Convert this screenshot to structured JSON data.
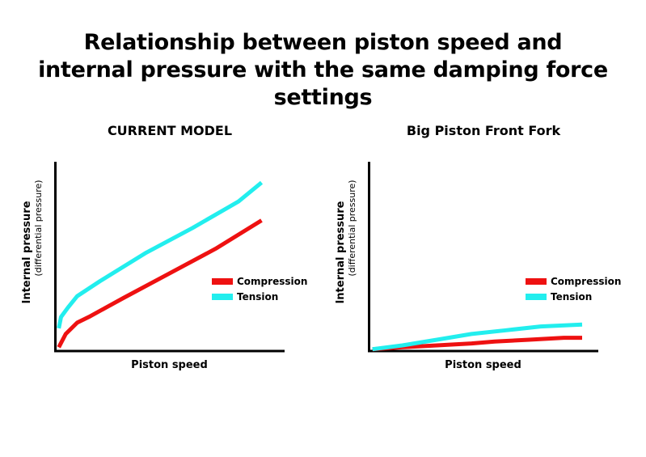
{
  "title_line1": "Relationship between piston speed and",
  "title_line2": "internal pressure with the same damping force settings",
  "colors": {
    "compression": "#ee1111",
    "tension": "#22eeee",
    "axis": "#000000"
  },
  "chart_data": [
    {
      "type": "line",
      "title": "CURRENT MODEL",
      "xlabel": "Piston speed",
      "ylabel": "Internal pressure",
      "ylabel_sub": "(differential pressure)",
      "xlim": [
        0,
        100
      ],
      "ylim": [
        0,
        100
      ],
      "legend_position": "right",
      "series": [
        {
          "name": "Compression",
          "color": "#ee1111",
          "x": [
            2,
            5,
            10,
            15,
            30,
            50,
            70,
            90
          ],
          "y": [
            2,
            9,
            15,
            18,
            28,
            41,
            54,
            69
          ]
        },
        {
          "name": "Tension",
          "color": "#22eeee",
          "x": [
            2,
            3,
            6,
            10,
            20,
            40,
            60,
            80,
            90
          ],
          "y": [
            12,
            18,
            23,
            29,
            37,
            52,
            65,
            79,
            89
          ]
        }
      ]
    },
    {
      "type": "line",
      "title": "Big Piston Front Fork",
      "xlabel": "Piston speed",
      "ylabel": "Internal pressure",
      "ylabel_sub": "(differential pressure)",
      "xlim": [
        0,
        100
      ],
      "ylim": [
        0,
        100
      ],
      "legend_position": "right",
      "series": [
        {
          "name": "Compression",
          "color": "#ee1111",
          "x": [
            2,
            15,
            30,
            45,
            55,
            70,
            85,
            93
          ],
          "y": [
            1,
            2,
            3,
            4,
            5,
            6,
            7,
            7
          ]
        },
        {
          "name": "Tension",
          "color": "#22eeee",
          "x": [
            2,
            15,
            30,
            45,
            60,
            75,
            93
          ],
          "y": [
            1,
            3,
            6,
            9,
            11,
            13,
            14
          ]
        }
      ]
    }
  ]
}
